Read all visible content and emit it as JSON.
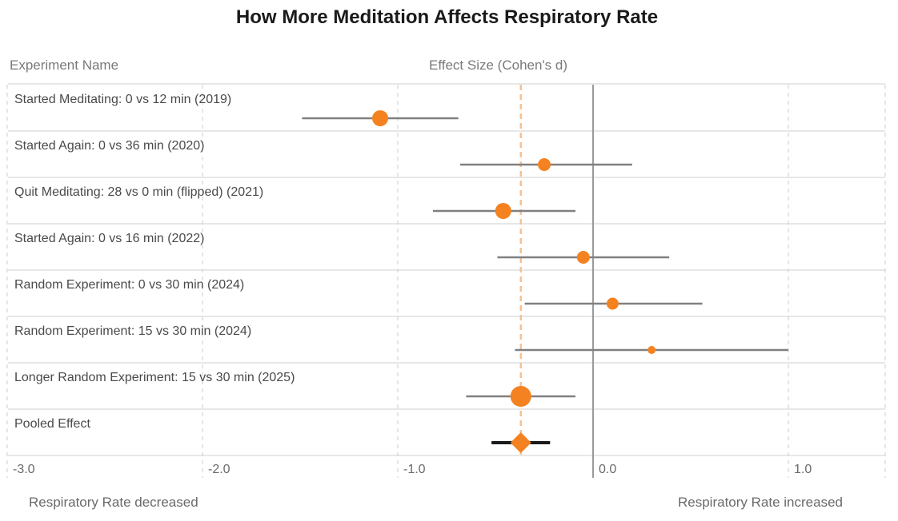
{
  "chart_data": {
    "type": "forest",
    "title": "How More Meditation Affects Respiratory Rate",
    "columns": {
      "name_header": "Experiment Name",
      "effect_header": "Effect Size (Cohen's d)"
    },
    "xlim": [
      -3.0,
      1.5
    ],
    "x_ticks": [
      -3.0,
      -2.0,
      -1.0,
      0.0,
      1.0
    ],
    "x_tick_labels": [
      "-3.0",
      "-2.0",
      "-1.0",
      "0.0",
      "1.0"
    ],
    "reference_line": 0.0,
    "pooled_line": -0.37,
    "direction_labels": {
      "lower": "Respiratory Rate decreased",
      "upper": "Respiratory Rate increased"
    },
    "colors": {
      "point": "#f58220",
      "ci": "#808080",
      "pooled_ci": "#1a1a1a",
      "pooled_line": "#f7c193"
    },
    "studies": [
      {
        "name": "Started Meditating: 0 vs 12 min (2019)",
        "d": -1.09,
        "ci": [
          -1.49,
          -0.69
        ],
        "weight": 1.0
      },
      {
        "name": "Started Again: 0 vs 36 min (2020)",
        "d": -0.25,
        "ci": [
          -0.68,
          0.2
        ],
        "weight": 0.8
      },
      {
        "name": "Quit Meditating: 28 vs 0 min (flipped) (2021)",
        "d": -0.46,
        "ci": [
          -0.82,
          -0.09
        ],
        "weight": 1.0
      },
      {
        "name": "Started Again: 0 vs 16 min (2022)",
        "d": -0.05,
        "ci": [
          -0.49,
          0.39
        ],
        "weight": 0.8
      },
      {
        "name": "Random Experiment: 0 vs 30 min (2024)",
        "d": 0.1,
        "ci": [
          -0.35,
          0.56
        ],
        "weight": 0.75
      },
      {
        "name": "Random Experiment: 15 vs 30 min (2024)",
        "d": 0.3,
        "ci": [
          -0.4,
          1.0
        ],
        "weight": 0.5
      },
      {
        "name": "Longer Random Experiment: 15 vs 30 min (2025)",
        "d": -0.37,
        "ci": [
          -0.65,
          -0.09
        ],
        "weight": 1.3
      }
    ],
    "pooled": {
      "name": "Pooled Effect",
      "d": -0.37,
      "ci": [
        -0.52,
        -0.22
      ]
    }
  }
}
